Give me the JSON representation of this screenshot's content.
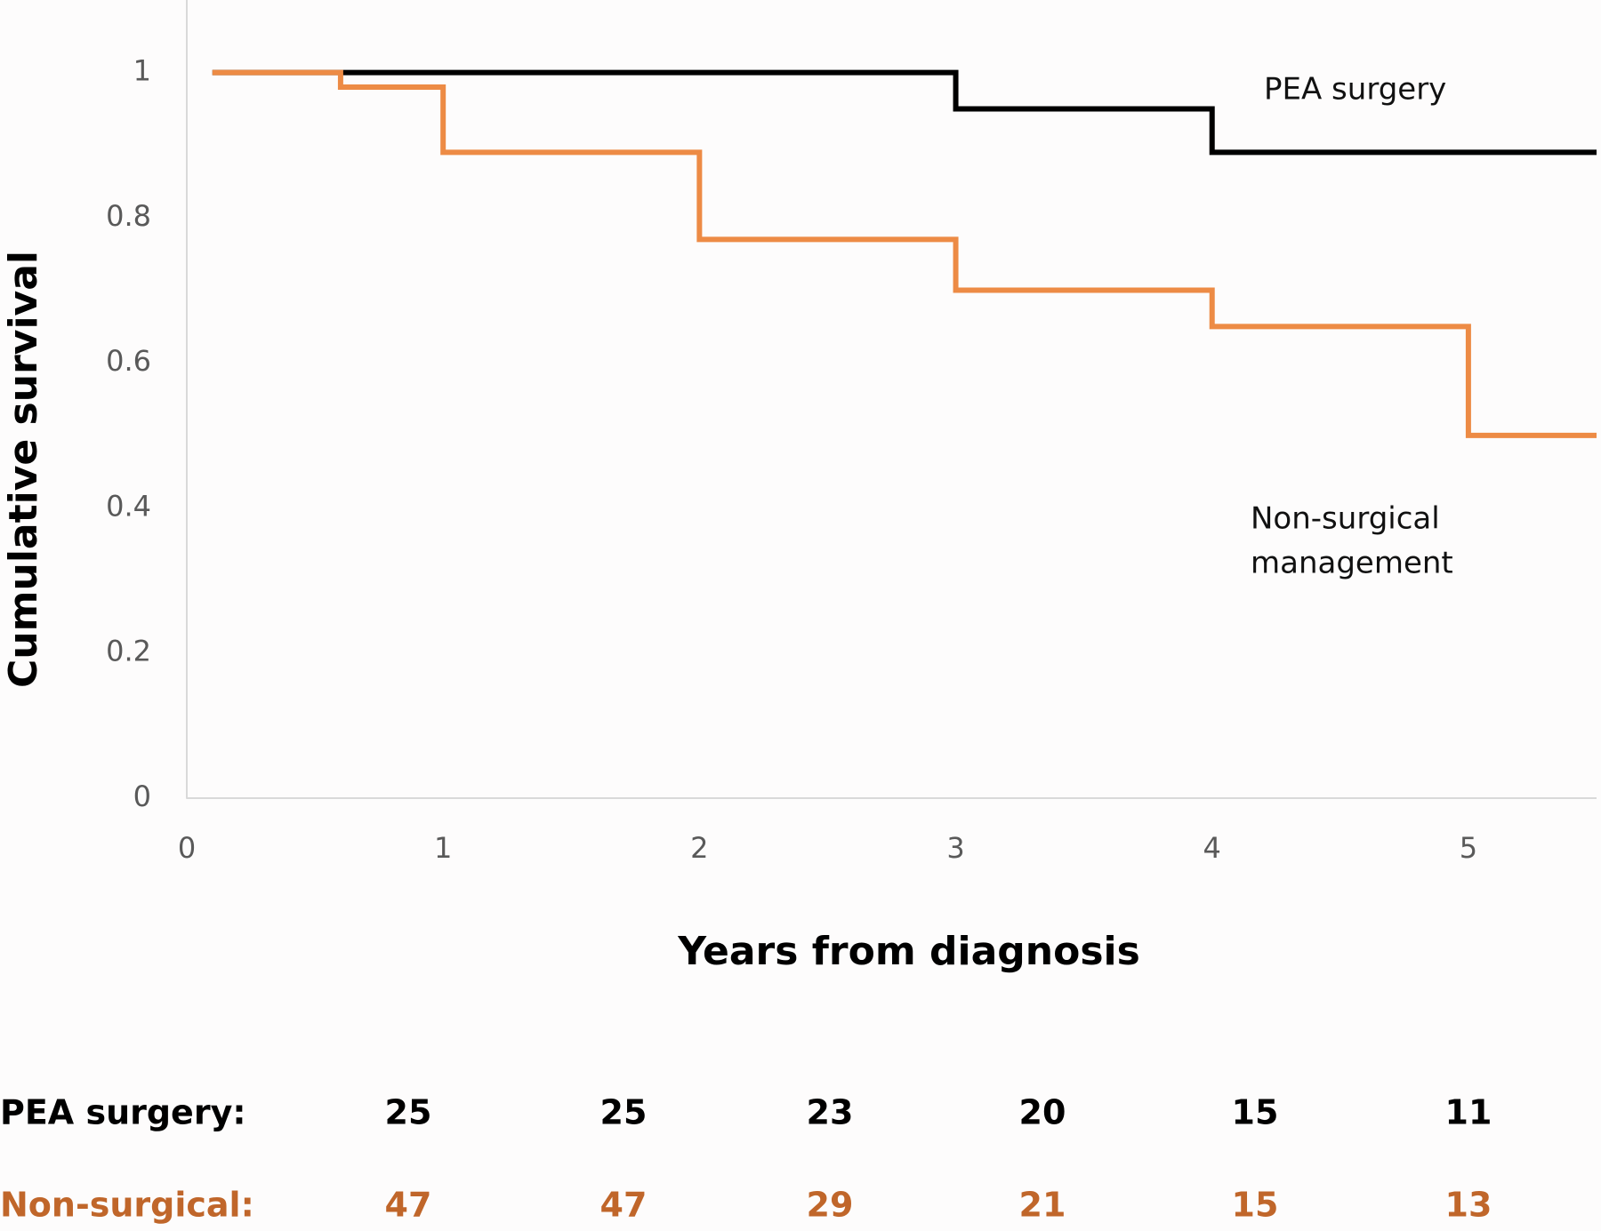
{
  "chart_data": {
    "type": "step",
    "y_label": "Cumulative survival",
    "x_label": "Years from diagnosis",
    "xlim": [
      0,
      5.5
    ],
    "xticks": [
      0,
      1,
      2,
      3,
      4,
      5
    ],
    "ylim": [
      0,
      1.1
    ],
    "yticks": [
      0,
      0.2,
      0.4,
      0.6,
      0.8,
      1
    ],
    "grid": false,
    "series": [
      {
        "name": "PEA surgery",
        "color": "#000000",
        "x": [
          0.1,
          3,
          4,
          5.5
        ],
        "values": [
          1,
          0.95,
          0.89,
          0.89
        ]
      },
      {
        "name": "Non-surgical management",
        "color": "#ed8b45",
        "x": [
          0.1,
          0.6,
          1,
          2,
          3,
          4,
          5,
          5.5
        ],
        "values": [
          1,
          0.98,
          0.89,
          0.77,
          0.7,
          0.65,
          0.5,
          0.5
        ]
      }
    ],
    "annotations": [
      [
        "PEA surgery"
      ],
      [
        "Non-surgical",
        "management"
      ]
    ]
  },
  "risk_table": {
    "rows": [
      {
        "label": "PEA surgery:",
        "color": "#000000",
        "values": [
          25,
          25,
          23,
          20,
          15,
          11
        ]
      },
      {
        "label": "Non-surgical:",
        "color": "#c0662a",
        "values": [
          47,
          47,
          29,
          21,
          15,
          13
        ]
      }
    ]
  }
}
